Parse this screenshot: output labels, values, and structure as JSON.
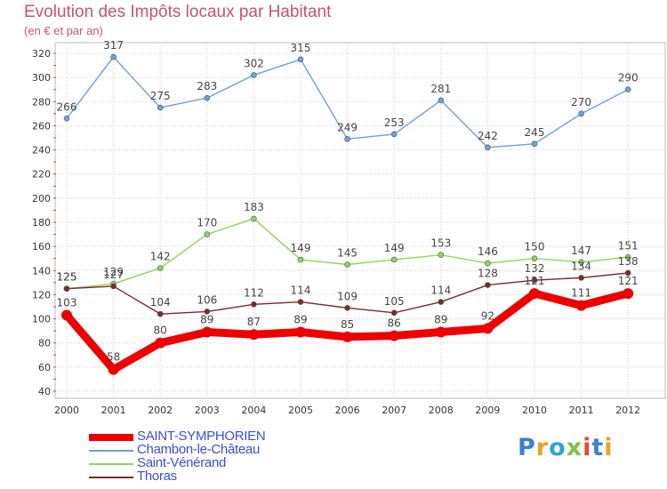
{
  "header": {
    "title": "Evolution des Impôts locaux par Habitant",
    "subtitle": "(en € et par an)"
  },
  "logo": {
    "text": "Proxiti"
  },
  "colors": {
    "title": "#c8526f",
    "grid": "#d0d0d0",
    "legend_text": "#3a4fd0"
  },
  "chart_data": {
    "type": "line",
    "title": "Evolution des Impôts locaux par Habitant",
    "subtitle": "(en € et par an)",
    "xlabel": "",
    "ylabel": "",
    "x": [
      "2000",
      "2001",
      "2002",
      "2003",
      "2004",
      "2005",
      "2006",
      "2007",
      "2008",
      "2009",
      "2010",
      "2011",
      "2012"
    ],
    "ylim": [
      40,
      320
    ],
    "yticks": [
      40,
      60,
      80,
      100,
      120,
      140,
      160,
      180,
      200,
      220,
      240,
      260,
      280,
      300,
      320
    ],
    "grid": true,
    "legend_position": "bottom-left",
    "series": [
      {
        "name": "SAINT-SYMPHORIEN",
        "color": "#ee0000",
        "thick": true,
        "values": [
          103,
          58,
          80,
          89,
          87,
          89,
          85,
          86,
          89,
          92,
          121,
          111,
          121
        ],
        "labels": [
          "103",
          "58",
          "80",
          "89",
          "87",
          "89",
          "85",
          "86",
          "89",
          "92",
          "121",
          "111",
          "121"
        ]
      },
      {
        "name": "Chambon-le-Château",
        "color": "#6f9fd8",
        "thick": false,
        "values": [
          266,
          317,
          275,
          283,
          302,
          315,
          249,
          253,
          281,
          242,
          245,
          270,
          290
        ],
        "labels": [
          "266",
          "317",
          "275",
          "283",
          "302",
          "315",
          "249",
          "253",
          "281",
          "242",
          "245",
          "270",
          "290"
        ]
      },
      {
        "name": "Saint-Vénérand",
        "color": "#90d45a",
        "thick": false,
        "values": [
          125,
          129,
          142,
          170,
          183,
          149,
          145,
          149,
          153,
          146,
          150,
          147,
          151
        ],
        "labels": [
          "125",
          "129",
          "142",
          "170",
          "183",
          "149",
          "145",
          "149",
          "153",
          "146",
          "150",
          "147",
          "151"
        ]
      },
      {
        "name": "Thoras",
        "color": "#7a2a2a",
        "thick": false,
        "values": [
          125,
          127,
          104,
          106,
          112,
          114,
          109,
          105,
          114,
          128,
          132,
          134,
          138
        ],
        "labels": [
          "125",
          "127",
          "104",
          "106",
          "112",
          "114",
          "109",
          "105",
          "114",
          "128",
          "132",
          "134",
          "138"
        ]
      }
    ]
  }
}
